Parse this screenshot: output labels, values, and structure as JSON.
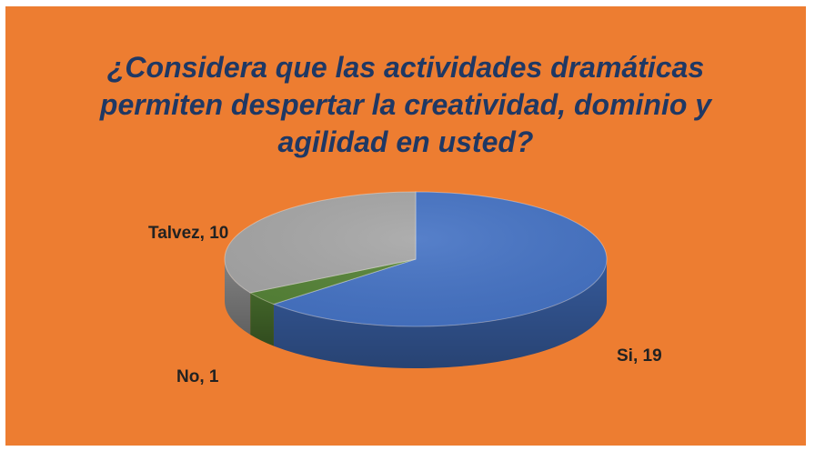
{
  "chart_data": {
    "type": "pie",
    "title_lines": [
      "¿Considera que las actividades dramáticas",
      "permiten despertar la creatividad, dominio y",
      "agilidad en usted?"
    ],
    "slices": [
      {
        "label": "Si",
        "value": 19,
        "color": "#4472C4",
        "data_label": "Si, 19"
      },
      {
        "label": "No",
        "value": 1,
        "color": "#548235",
        "data_label": "No, 1"
      },
      {
        "label": "Talvez",
        "value": 10,
        "color": "#A5A5A5",
        "data_label": "Talvez, 10"
      }
    ],
    "legend": "none",
    "style": "3d"
  },
  "colors": {
    "background": "#ED7D31",
    "title": "#1F3864"
  }
}
